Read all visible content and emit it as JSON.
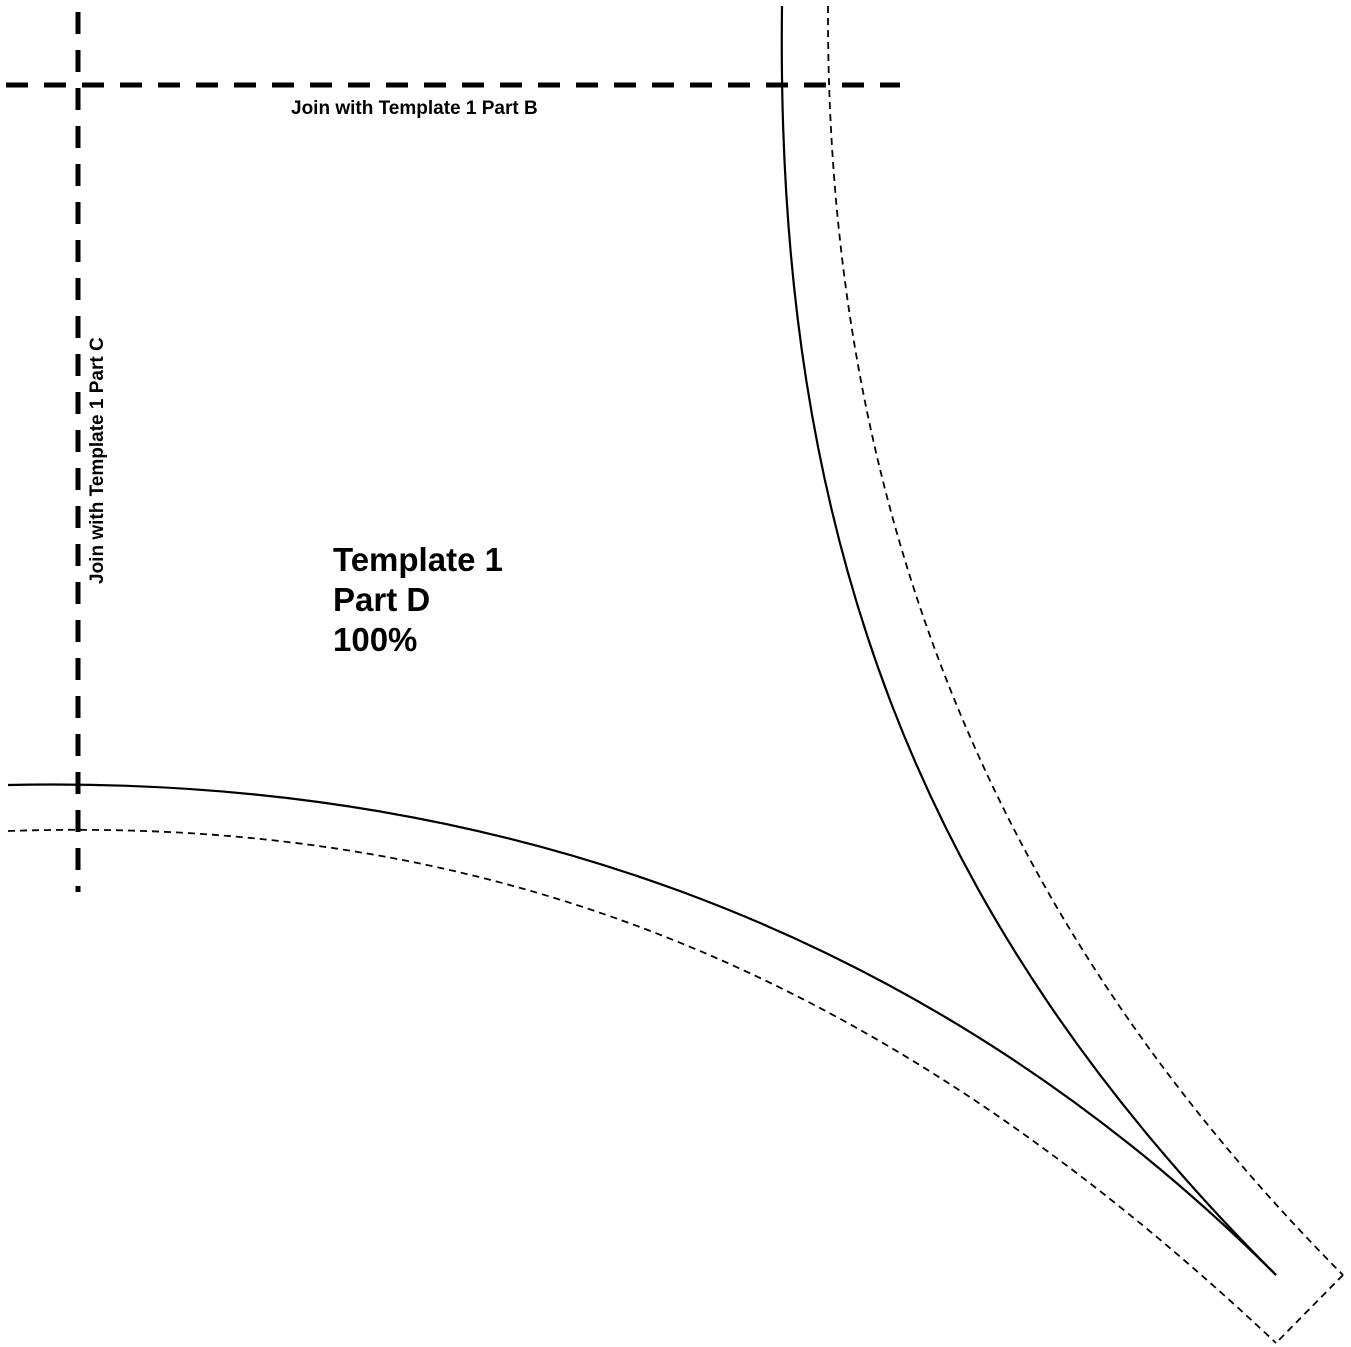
{
  "labels": {
    "join_top": "Join with Template 1 Part B",
    "join_left": "Join with Template 1 Part C"
  },
  "title": {
    "line1": "Template 1",
    "line2": "Part D",
    "line3": "100%"
  },
  "colors": {
    "ink": "#000000",
    "background": "#ffffff"
  }
}
